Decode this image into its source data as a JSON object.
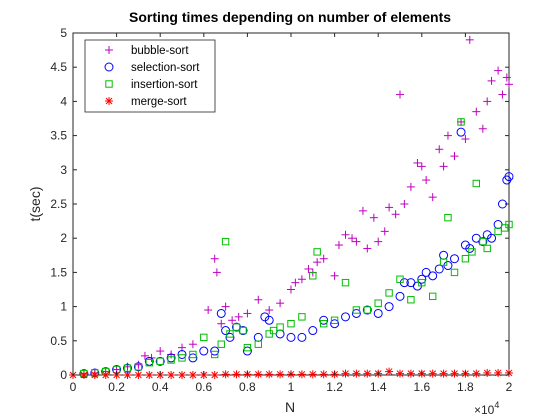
{
  "chart_data": {
    "type": "scatter",
    "title": "Sorting times depending on number of elements",
    "xlabel": "N",
    "ylabel": "t(sec)",
    "x_exponent_label": "×10",
    "x_exponent_power": "4",
    "xlim": [
      0,
      2
    ],
    "ylim": [
      0,
      5
    ],
    "x_ticks": [
      0,
      0.2,
      0.4,
      0.6,
      0.8,
      1,
      1.2,
      1.4,
      1.6,
      1.8,
      2
    ],
    "x_tick_labels": [
      "0",
      "0.2",
      "0.4",
      "0.6",
      "0.8",
      "1",
      "1.2",
      "1.4",
      "1.6",
      "1.8",
      "2"
    ],
    "y_ticks": [
      0,
      0.5,
      1,
      1.5,
      2,
      2.5,
      3,
      3.5,
      4,
      4.5,
      5
    ],
    "y_tick_labels": [
      "0",
      "0.5",
      "1",
      "1.5",
      "2",
      "2.5",
      "3",
      "3.5",
      "4",
      "4.5",
      "5"
    ],
    "grid": false,
    "legend_position": "top-left",
    "series": [
      {
        "name": "bubble-sort",
        "marker": "plus",
        "color": "#bf00bf",
        "x": [
          0.05,
          0.1,
          0.15,
          0.2,
          0.25,
          0.3,
          0.33,
          0.36,
          0.4,
          0.45,
          0.5,
          0.55,
          0.62,
          0.65,
          0.66,
          0.68,
          0.7,
          0.73,
          0.76,
          0.8,
          0.85,
          0.9,
          0.95,
          1.0,
          1.02,
          1.05,
          1.08,
          1.1,
          1.12,
          1.15,
          1.2,
          1.22,
          1.25,
          1.28,
          1.3,
          1.33,
          1.35,
          1.38,
          1.4,
          1.43,
          1.45,
          1.48,
          1.5,
          1.52,
          1.55,
          1.58,
          1.6,
          1.62,
          1.65,
          1.68,
          1.7,
          1.72,
          1.75,
          1.78,
          1.8,
          1.82,
          1.85,
          1.88,
          1.9,
          1.92,
          1.95,
          1.97,
          1.99,
          2.0
        ],
        "y": [
          0.02,
          0.03,
          0.05,
          0.08,
          0.12,
          0.15,
          0.28,
          0.25,
          0.35,
          0.3,
          0.4,
          0.45,
          0.95,
          1.7,
          1.5,
          0.75,
          1.0,
          0.8,
          0.85,
          0.9,
          1.1,
          0.95,
          1.05,
          1.25,
          1.35,
          1.4,
          1.55,
          1.5,
          1.65,
          1.7,
          1.45,
          1.9,
          2.05,
          2.0,
          1.95,
          2.4,
          1.85,
          2.3,
          1.95,
          2.1,
          2.45,
          2.35,
          4.1,
          2.5,
          2.75,
          3.1,
          3.05,
          2.85,
          2.6,
          3.3,
          3.05,
          3.5,
          3.2,
          3.7,
          3.45,
          4.9,
          3.85,
          3.6,
          4.0,
          4.3,
          4.45,
          4.1,
          4.35,
          4.25
        ]
      },
      {
        "name": "selection-sort",
        "marker": "circle",
        "color": "#0000ff",
        "x": [
          0.05,
          0.1,
          0.15,
          0.2,
          0.25,
          0.3,
          0.35,
          0.4,
          0.45,
          0.5,
          0.55,
          0.6,
          0.65,
          0.68,
          0.7,
          0.72,
          0.75,
          0.78,
          0.8,
          0.85,
          0.88,
          0.9,
          0.95,
          1.0,
          1.05,
          1.1,
          1.15,
          1.2,
          1.25,
          1.3,
          1.35,
          1.4,
          1.45,
          1.5,
          1.52,
          1.55,
          1.58,
          1.6,
          1.62,
          1.65,
          1.68,
          1.7,
          1.72,
          1.75,
          1.78,
          1.8,
          1.82,
          1.85,
          1.88,
          1.9,
          1.92,
          1.95,
          1.97,
          1.99,
          2.0
        ],
        "y": [
          0.02,
          0.03,
          0.05,
          0.08,
          0.1,
          0.12,
          0.2,
          0.2,
          0.25,
          0.3,
          0.25,
          0.35,
          0.35,
          0.9,
          0.65,
          0.55,
          0.7,
          0.65,
          0.35,
          0.55,
          0.85,
          0.8,
          0.6,
          0.55,
          0.55,
          0.65,
          0.8,
          0.75,
          0.85,
          0.9,
          0.95,
          0.9,
          1.0,
          1.15,
          1.35,
          1.35,
          1.3,
          1.4,
          1.5,
          1.45,
          1.55,
          1.75,
          1.6,
          1.7,
          3.55,
          1.9,
          1.85,
          2.0,
          1.95,
          2.05,
          2.0,
          2.2,
          2.5,
          2.85,
          2.9
        ]
      },
      {
        "name": "insertion-sort",
        "marker": "square",
        "color": "#00bf00",
        "x": [
          0.05,
          0.1,
          0.15,
          0.2,
          0.25,
          0.3,
          0.35,
          0.4,
          0.45,
          0.5,
          0.55,
          0.6,
          0.65,
          0.68,
          0.7,
          0.72,
          0.75,
          0.78,
          0.8,
          0.85,
          0.9,
          0.92,
          0.95,
          1.0,
          1.05,
          1.1,
          1.12,
          1.15,
          1.2,
          1.25,
          1.3,
          1.35,
          1.4,
          1.45,
          1.5,
          1.55,
          1.6,
          1.65,
          1.7,
          1.72,
          1.75,
          1.78,
          1.8,
          1.83,
          1.85,
          1.88,
          1.9,
          1.95,
          1.98,
          2.0
        ],
        "y": [
          0.02,
          0.03,
          0.05,
          0.08,
          0.1,
          0.12,
          0.18,
          0.2,
          0.22,
          0.25,
          0.3,
          0.55,
          0.3,
          0.45,
          1.95,
          0.6,
          0.7,
          0.65,
          0.4,
          0.45,
          0.6,
          0.65,
          0.7,
          0.75,
          0.85,
          1.45,
          1.8,
          0.75,
          0.8,
          1.35,
          0.95,
          0.95,
          1.05,
          1.2,
          1.4,
          1.1,
          1.35,
          1.15,
          1.65,
          2.3,
          1.5,
          3.7,
          1.7,
          1.8,
          2.8,
          1.95,
          1.85,
          2.1,
          2.15,
          2.2
        ]
      },
      {
        "name": "merge-sort",
        "marker": "asterisk",
        "color": "#ff0000",
        "x": [
          0.0,
          0.05,
          0.1,
          0.15,
          0.2,
          0.25,
          0.3,
          0.35,
          0.4,
          0.45,
          0.5,
          0.55,
          0.6,
          0.65,
          0.7,
          0.75,
          0.8,
          0.85,
          0.9,
          0.95,
          1.0,
          1.05,
          1.1,
          1.15,
          1.2,
          1.25,
          1.3,
          1.35,
          1.4,
          1.45,
          1.5,
          1.55,
          1.6,
          1.65,
          1.7,
          1.75,
          1.8,
          1.85,
          1.9,
          1.95,
          2.0
        ],
        "y": [
          0.0,
          0.0,
          0.0,
          0.0,
          0.0,
          0.0,
          0.0,
          0.0,
          0.0,
          0.0,
          0.0,
          0.0,
          0.0,
          0.0,
          0.01,
          0.01,
          0.01,
          0.01,
          0.01,
          0.01,
          0.01,
          0.01,
          0.01,
          0.01,
          0.01,
          0.02,
          0.02,
          0.02,
          0.02,
          0.05,
          0.02,
          0.02,
          0.02,
          0.02,
          0.02,
          0.02,
          0.02,
          0.02,
          0.03,
          0.03,
          0.03
        ]
      }
    ]
  }
}
